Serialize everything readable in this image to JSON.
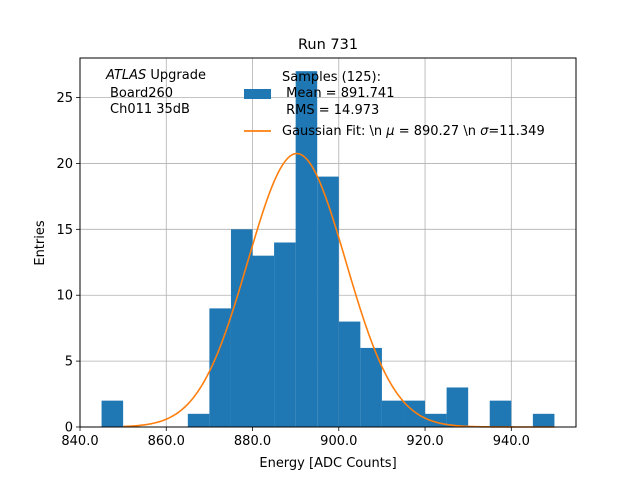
{
  "chart_data": {
    "type": "bar",
    "title": "Run 731",
    "xlabel": "Energy [ADC Counts]",
    "ylabel": "Entries",
    "xlim": [
      840,
      955
    ],
    "ylim": [
      0,
      28
    ],
    "grid": true,
    "x_ticks": [
      840,
      860,
      880,
      900,
      920,
      940
    ],
    "x_tick_labels": [
      "840.0",
      "860.0",
      "880.0",
      "900.0",
      "920.0",
      "940.0"
    ],
    "y_ticks": [
      0,
      5,
      10,
      15,
      20,
      25
    ],
    "y_tick_labels": [
      "0",
      "5",
      "10",
      "15",
      "20",
      "25"
    ],
    "annotation": {
      "line1_italic": "ATLAS",
      "line1_rest": " Upgrade",
      "line2": "Board260",
      "line3": "Ch011 35dB"
    },
    "histogram": {
      "name": "Samples (125):",
      "color": "#1f77b4",
      "bin_edges": [
        845,
        850,
        855,
        860,
        865,
        870,
        875,
        880,
        885,
        890,
        895,
        900,
        905,
        910,
        915,
        920,
        925,
        930,
        935,
        940,
        945,
        950
      ],
      "counts": [
        2,
        0,
        0,
        0,
        1,
        9,
        15,
        13,
        14,
        27,
        19,
        8,
        6,
        2,
        2,
        1,
        3,
        0,
        2,
        0,
        1
      ],
      "legend_line1": "Samples (125):",
      "legend_line2": " Mean = 891.741",
      "legend_line3": " RMS = 14.973"
    },
    "fit": {
      "type": "gaussian",
      "color": "#ff7f0e",
      "mu": 890.27,
      "sigma": 11.349,
      "amplitude": 20.75,
      "x_range": [
        850,
        950
      ],
      "legend_prefix": "Gaussian Fit: \\n ",
      "legend_mu_symbol": "μ",
      "legend_middle": " = 890.27 \\n ",
      "legend_sigma_symbol": "σ",
      "legend_suffix": "=11.349"
    }
  }
}
